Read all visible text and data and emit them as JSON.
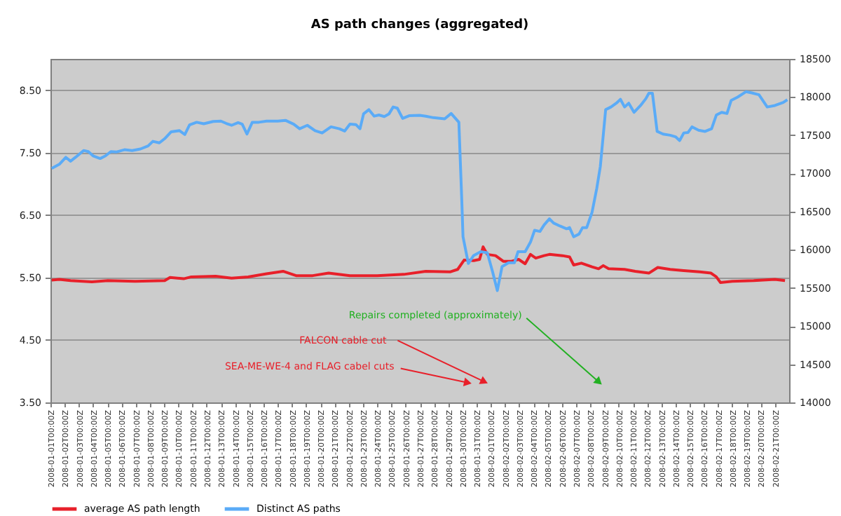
{
  "chart_data": {
    "type": "line",
    "title": "AS path changes (aggregated)",
    "xlim": [
      "2008-01-01T00:00",
      "2008-02-22T00:00"
    ],
    "xticks": [
      {
        "value": "2008-01-01",
        "label": "2008-01-01T00:00Z"
      },
      {
        "value": "2008-01-02",
        "label": "2008-01-02T00:00Z"
      },
      {
        "value": "2008-01-03",
        "label": "2008-01-03T00:00Z"
      },
      {
        "value": "2008-01-04",
        "label": "2008-01-04T00:00Z"
      },
      {
        "value": "2008-01-05",
        "label": "2008-01-05T00:00Z"
      },
      {
        "value": "2008-01-06",
        "label": "2008-01-06T00:00Z"
      },
      {
        "value": "2008-01-07",
        "label": "2008-01-07T00:00Z"
      },
      {
        "value": "2008-01-08",
        "label": "2008-01-08T00:00Z"
      },
      {
        "value": "2008-01-09",
        "label": "2008-01-09T00:00Z"
      },
      {
        "value": "2008-01-10",
        "label": "2008-01-10T00:00Z"
      },
      {
        "value": "2008-01-11",
        "label": "2008-01-11T00:00Z"
      },
      {
        "value": "2008-01-12",
        "label": "2008-01-12T00:00Z"
      },
      {
        "value": "2008-01-13",
        "label": "2008-01-13T00:00Z"
      },
      {
        "value": "2008-01-14",
        "label": "2008-01-14T00:00Z"
      },
      {
        "value": "2008-01-15",
        "label": "2008-01-15T00:00Z"
      },
      {
        "value": "2008-01-16",
        "label": "2008-01-16T00:00Z"
      },
      {
        "value": "2008-01-17",
        "label": "2008-01-17T00:00Z"
      },
      {
        "value": "2008-01-18",
        "label": "2008-01-18T00:00Z"
      },
      {
        "value": "2008-01-19",
        "label": "2008-01-19T00:00Z"
      },
      {
        "value": "2008-01-20",
        "label": "2008-01-20T00:00Z"
      },
      {
        "value": "2008-01-21",
        "label": "2008-01-21T00:00Z"
      },
      {
        "value": "2008-01-22",
        "label": "2008-01-22T00:00Z"
      },
      {
        "value": "2008-01-23",
        "label": "2008-01-23T00:00Z"
      },
      {
        "value": "2008-01-24",
        "label": "2008-01-24T00:00Z"
      },
      {
        "value": "2008-01-25",
        "label": "2008-01-25T00:00Z"
      },
      {
        "value": "2008-01-26",
        "label": "2008-01-26T00:00Z"
      },
      {
        "value": "2008-01-27",
        "label": "2008-01-27T00:00Z"
      },
      {
        "value": "2008-01-28",
        "label": "2008-01-28T00:00Z"
      },
      {
        "value": "2008-01-29",
        "label": "2008-01-29T00:00Z"
      },
      {
        "value": "2008-01-30",
        "label": "2008-01-30T00:00Z"
      },
      {
        "value": "2008-01-31",
        "label": "2008-01-31T00:00Z"
      },
      {
        "value": "2008-02-01",
        "label": "2008-02-01T00:00Z"
      },
      {
        "value": "2008-02-02",
        "label": "2008-02-02T00:00Z"
      },
      {
        "value": "2008-02-03",
        "label": "2008-02-03T00:00Z"
      },
      {
        "value": "2008-02-04",
        "label": "2008-02-04T00:00Z"
      },
      {
        "value": "2008-02-05",
        "label": "2008-02-05T00:00Z"
      },
      {
        "value": "2008-02-06",
        "label": "2008-02-06T00:00Z"
      },
      {
        "value": "2008-02-07",
        "label": "2008-02-07T00:00Z"
      },
      {
        "value": "2008-02-08",
        "label": "2008-02-08T00:00Z"
      },
      {
        "value": "2008-02-09",
        "label": "2008-02-09T00:00Z"
      },
      {
        "value": "2008-02-10",
        "label": "2008-02-10T00:00Z"
      },
      {
        "value": "2008-02-11",
        "label": "2008-02-11T00:00Z"
      },
      {
        "value": "2008-02-12",
        "label": "2008-02-12T00:00Z"
      },
      {
        "value": "2008-02-13",
        "label": "2008-02-13T00:00Z"
      },
      {
        "value": "2008-02-14",
        "label": "2008-02-14T00:00Z"
      },
      {
        "value": "2008-02-15",
        "label": "2008-02-15T00:00Z"
      },
      {
        "value": "2008-02-16",
        "label": "2008-02-16T00:00Z"
      },
      {
        "value": "2008-02-17",
        "label": "2008-02-17T00:00Z"
      },
      {
        "value": "2008-02-18",
        "label": "2008-02-18T00:00Z"
      },
      {
        "value": "2008-02-19",
        "label": "2008-02-19T00:00Z"
      },
      {
        "value": "2008-02-20",
        "label": "2008-02-20T00:00Z"
      },
      {
        "value": "2008-02-21",
        "label": "2008-02-21T00:00Z"
      }
    ],
    "ylim": [
      3.5,
      9.0
    ],
    "yticks": [
      {
        "value": 3.5,
        "label": "3.50"
      },
      {
        "value": 4.5,
        "label": "4.50"
      },
      {
        "value": 5.5,
        "label": "5.50"
      },
      {
        "value": 6.5,
        "label": "6.50"
      },
      {
        "value": 7.5,
        "label": "7.50"
      },
      {
        "value": 8.5,
        "label": "8.50"
      }
    ],
    "y2lim": [
      14000,
      18500
    ],
    "y2ticks": [
      14000,
      14500,
      15000,
      15500,
      16000,
      16500,
      17000,
      17500,
      18000,
      18500
    ],
    "grid": "y",
    "legend": "bottom",
    "marker": "none",
    "line_style": "solid",
    "series": [
      {
        "name": "average AS path length",
        "color": "#e8202a",
        "x": [
          "2008-01-01T02:00",
          "2008-01-01T15:00",
          "2008-01-02T10:00",
          "2008-01-03T22:00",
          "2008-01-05T01:00",
          "2008-01-06T23:00",
          "2008-01-09T01:00",
          "2008-01-09T10:00",
          "2008-01-10T09:00",
          "2008-01-10T22:00",
          "2008-01-12T15:00",
          "2008-01-13T18:00",
          "2008-01-14T22:00",
          "2008-01-16T05:00",
          "2008-01-17T09:00",
          "2008-01-18T07:00",
          "2008-01-19T11:00",
          "2008-01-20T14:00",
          "2008-01-22T02:00",
          "2008-01-24T00:00",
          "2008-01-25T21:00",
          "2008-01-27T10:00",
          "2008-01-29T03:00",
          "2008-01-29T16:00",
          "2008-01-30T03:00",
          "2008-01-30T19:00",
          "2008-01-31T05:00",
          "2008-01-31T11:00",
          "2008-01-31T18:00",
          "2008-02-01T08:00",
          "2008-02-01T21:00",
          "2008-02-02T11:00",
          "2008-02-02T23:00",
          "2008-02-03T10:00",
          "2008-02-03T19:00",
          "2008-02-04T04:00",
          "2008-02-04T18:00",
          "2008-02-05T03:00",
          "2008-02-06T01:00",
          "2008-02-06T13:00",
          "2008-02-06T20:00",
          "2008-02-07T09:00",
          "2008-02-08T03:00",
          "2008-02-08T14:00",
          "2008-02-08T22:00",
          "2008-02-09T07:00",
          "2008-02-10T10:00",
          "2008-02-11T04:00",
          "2008-02-12T03:00",
          "2008-02-12T18:00",
          "2008-02-13T15:00",
          "2008-02-14T14:00",
          "2008-02-15T17:00",
          "2008-02-16T12:00",
          "2008-02-16T21:00",
          "2008-02-17T04:00",
          "2008-02-18T00:00",
          "2008-02-19T12:00",
          "2008-02-21T00:00",
          "2008-02-21T17:00"
        ],
        "values": [
          5.46,
          5.47,
          5.45,
          5.43,
          5.45,
          5.44,
          5.45,
          5.5,
          5.48,
          5.51,
          5.52,
          5.49,
          5.51,
          5.56,
          5.6,
          5.53,
          5.53,
          5.57,
          5.53,
          5.53,
          5.55,
          5.6,
          5.59,
          5.63,
          5.78,
          5.77,
          5.79,
          5.99,
          5.87,
          5.85,
          5.76,
          5.76,
          5.79,
          5.72,
          5.87,
          5.81,
          5.85,
          5.87,
          5.85,
          5.83,
          5.7,
          5.73,
          5.67,
          5.64,
          5.69,
          5.64,
          5.63,
          5.6,
          5.57,
          5.66,
          5.63,
          5.61,
          5.59,
          5.57,
          5.51,
          5.42,
          5.44,
          5.45,
          5.47,
          5.45
        ]
      },
      {
        "name": "Distinct AS paths",
        "color": "#5aabf7",
        "axis": "y2",
        "x": [
          "2008-01-01T02:00",
          "2008-01-01T15:00",
          "2008-01-02T02:00",
          "2008-01-02T10:00",
          "2008-01-02T19:00",
          "2008-01-03T08:00",
          "2008-01-03T16:00",
          "2008-01-04T00:00",
          "2008-01-04T12:00",
          "2008-01-04T21:00",
          "2008-01-05T06:00",
          "2008-01-05T15:00",
          "2008-01-06T05:00",
          "2008-01-06T18:00",
          "2008-01-07T08:00",
          "2008-01-07T21:00",
          "2008-01-08T05:00",
          "2008-01-08T16:00",
          "2008-01-09T01:00",
          "2008-01-09T12:00",
          "2008-01-10T02:00",
          "2008-01-10T11:00",
          "2008-01-10T19:00",
          "2008-01-11T07:00",
          "2008-01-11T19:00",
          "2008-01-12T11:00",
          "2008-01-13T00:00",
          "2008-01-13T09:00",
          "2008-01-13T18:00",
          "2008-01-14T05:00",
          "2008-01-14T12:00",
          "2008-01-14T20:00",
          "2008-01-15T05:00",
          "2008-01-15T16:00",
          "2008-01-16T05:00",
          "2008-01-17T00:00",
          "2008-01-17T13:00",
          "2008-01-18T03:00",
          "2008-01-18T13:00",
          "2008-01-19T02:00",
          "2008-01-19T15:00",
          "2008-01-20T03:00",
          "2008-01-20T18:00",
          "2008-01-21T08:00",
          "2008-01-21T17:00",
          "2008-01-22T02:00",
          "2008-01-22T12:00",
          "2008-01-22T19:00",
          "2008-01-23T01:00",
          "2008-01-23T10:00",
          "2008-01-23T19:00",
          "2008-01-24T03:00",
          "2008-01-24T12:00",
          "2008-01-24T20:00",
          "2008-01-25T03:00",
          "2008-01-25T10:00",
          "2008-01-25T19:00",
          "2008-01-26T06:00",
          "2008-01-27T00:00",
          "2008-01-27T10:00",
          "2008-01-27T23:00",
          "2008-01-28T18:00",
          "2008-01-29T05:00",
          "2008-01-29T18:00",
          "2008-01-29T23:00",
          "2008-01-30T01:00",
          "2008-01-30T10:00",
          "2008-01-30T19:00",
          "2008-01-31T07:00",
          "2008-01-31T18:00",
          "2008-02-01T03:00",
          "2008-02-01T11:00",
          "2008-02-01T19:00",
          "2008-02-02T06:00",
          "2008-02-02T16:00",
          "2008-02-02T22:00",
          "2008-02-03T10:00",
          "2008-02-03T19:00",
          "2008-02-04T02:00",
          "2008-02-04T11:00",
          "2008-02-04T18:00",
          "2008-02-05T03:00",
          "2008-02-05T10:00",
          "2008-02-05T21:00",
          "2008-02-06T08:00",
          "2008-02-06T13:00",
          "2008-02-06T20:00",
          "2008-02-07T05:00",
          "2008-02-07T11:00",
          "2008-02-07T18:00",
          "2008-02-08T03:00",
          "2008-02-08T11:00",
          "2008-02-08T17:00",
          "2008-02-09T02:00",
          "2008-02-09T11:00",
          "2008-02-09T20:00",
          "2008-02-10T03:00",
          "2008-02-10T10:00",
          "2008-02-10T17:00",
          "2008-02-11T02:00",
          "2008-02-11T13:00",
          "2008-02-11T22:00",
          "2008-02-12T03:00",
          "2008-02-12T09:00",
          "2008-02-12T17:00",
          "2008-02-13T03:00",
          "2008-02-13T15:00",
          "2008-02-14T00:00",
          "2008-02-14T07:00",
          "2008-02-14T14:00",
          "2008-02-14T21:00",
          "2008-02-15T04:00",
          "2008-02-15T15:00",
          "2008-02-16T02:00",
          "2008-02-16T13:00",
          "2008-02-16T21:00",
          "2008-02-17T06:00",
          "2008-02-17T15:00",
          "2008-02-17T22:00",
          "2008-02-18T09:00",
          "2008-02-18T23:00",
          "2008-02-19T09:00",
          "2008-02-19T21:00",
          "2008-02-20T11:00",
          "2008-02-21T00:00",
          "2008-02-21T14:00",
          "2008-02-21T21:00"
        ],
        "values": [
          17065,
          17120,
          17210,
          17160,
          17215,
          17300,
          17285,
          17230,
          17195,
          17230,
          17285,
          17280,
          17310,
          17300,
          17320,
          17360,
          17420,
          17400,
          17455,
          17545,
          17560,
          17510,
          17635,
          17670,
          17650,
          17680,
          17685,
          17655,
          17630,
          17665,
          17645,
          17515,
          17670,
          17670,
          17685,
          17685,
          17695,
          17645,
          17585,
          17630,
          17560,
          17530,
          17610,
          17585,
          17555,
          17645,
          17640,
          17585,
          17780,
          17835,
          17750,
          17765,
          17745,
          17780,
          17870,
          17855,
          17720,
          17755,
          17760,
          17750,
          17730,
          17715,
          17785,
          17670,
          16630,
          16170,
          15820,
          15925,
          15975,
          15960,
          15710,
          15465,
          15780,
          15830,
          15830,
          15975,
          15975,
          16100,
          16255,
          16240,
          16325,
          16405,
          16350,
          16310,
          16275,
          16290,
          16170,
          16205,
          16290,
          16290,
          16490,
          16805,
          17090,
          17835,
          17870,
          17920,
          17970,
          17870,
          17920,
          17800,
          17890,
          17980,
          18050,
          18050,
          17550,
          17515,
          17500,
          17480,
          17430,
          17530,
          17535,
          17610,
          17565,
          17550,
          17585,
          17765,
          17800,
          17785,
          17955,
          18000,
          18070,
          18055,
          18030,
          17870,
          17890,
          17930,
          17965
        ]
      }
    ],
    "annotations": [
      {
        "text": "SEA-ME-WE-4 and FLAG cabel cuts",
        "x": "2008-01-30T07:00",
        "y": 3.82
      },
      {
        "text": "FALCON cable cut",
        "x": "2008-01-31T11:00",
        "y": 3.84
      },
      {
        "text": "Repairs completed (approximately)",
        "x": "2008-02-08T13:00",
        "y": 3.84
      }
    ]
  }
}
